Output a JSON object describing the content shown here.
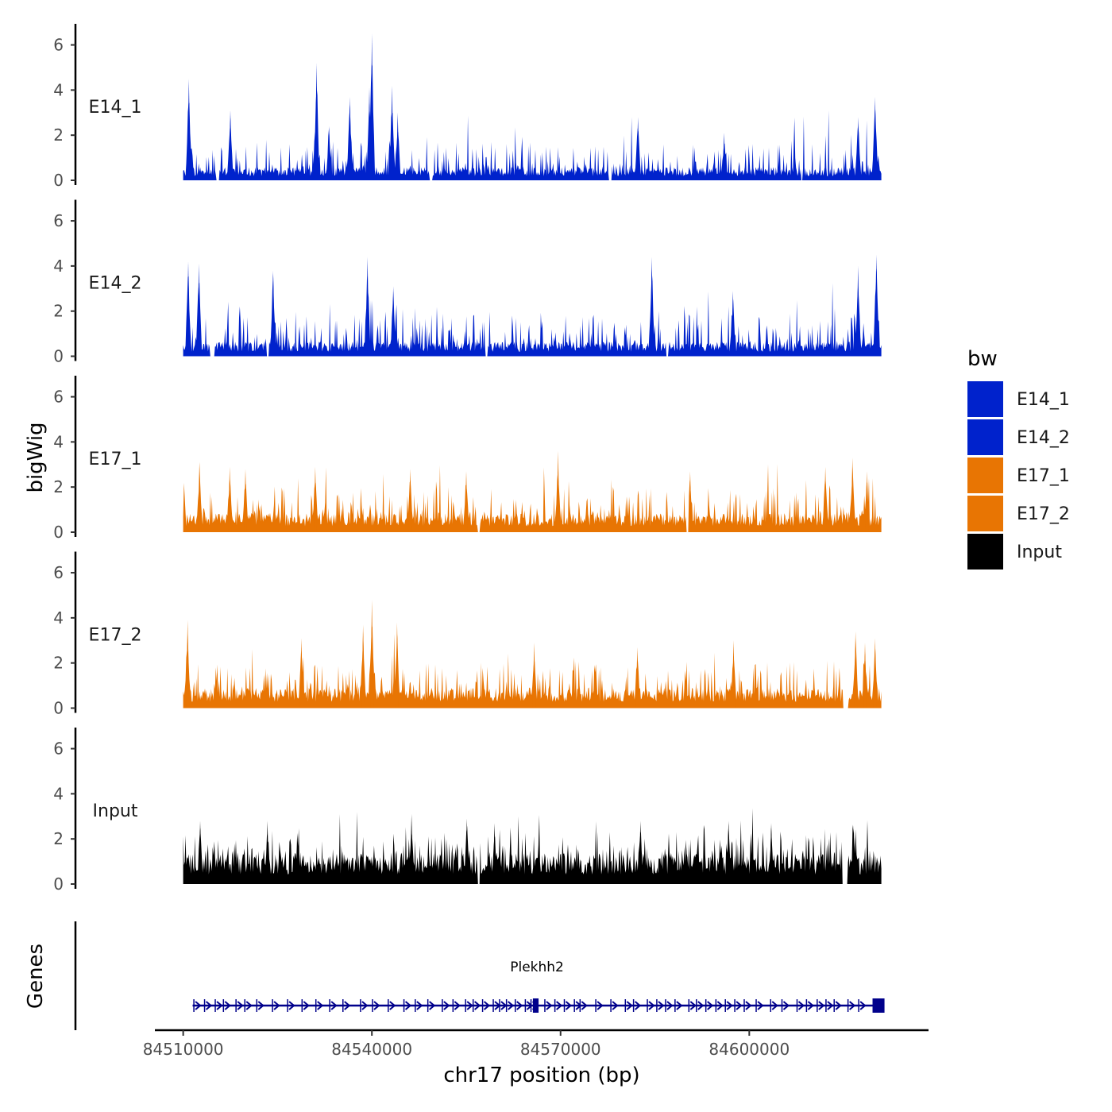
{
  "chart_data": {
    "type": "area",
    "x_axis": {
      "title": "chr17 position (bp)",
      "range": [
        84505500,
        84628500
      ],
      "data_range": [
        84510000,
        84621000
      ],
      "ticks": [
        84510000,
        84540000,
        84570000,
        84600000
      ],
      "tick_labels": [
        "84510000",
        "84540000",
        "84570000",
        "84600000"
      ]
    },
    "y_axis": {
      "title": "bigWig",
      "range": [
        0,
        6.9
      ],
      "ticks": [
        0,
        2,
        4,
        6
      ],
      "tick_labels": [
        "0",
        "2",
        "4",
        "6"
      ]
    },
    "legend": {
      "title": "bw",
      "position": "right",
      "entries": [
        {
          "label": "E14_1",
          "color": "#0022CC"
        },
        {
          "label": "E14_2",
          "color": "#0022CC"
        },
        {
          "label": "E17_1",
          "color": "#E87503"
        },
        {
          "label": "E17_2",
          "color": "#E87503"
        },
        {
          "label": "Input",
          "color": "#000000"
        }
      ]
    },
    "tracks": [
      {
        "name": "E14_1",
        "color": "#0022CC",
        "baseline": 0.45,
        "noise": 0.9,
        "gaps": [
          [
            84515200,
            84515700
          ],
          [
            84549200,
            84549600
          ],
          [
            84577700,
            84578100
          ],
          [
            84608200,
            84608500
          ]
        ],
        "peaks": [
          [
            84510900,
            4.5
          ],
          [
            84517500,
            3.1
          ],
          [
            84531200,
            5.2
          ],
          [
            84533200,
            2.4
          ],
          [
            84536500,
            3.7
          ],
          [
            84539600,
            4.1
          ],
          [
            84540000,
            6.5
          ],
          [
            84543200,
            4.2
          ],
          [
            84544100,
            3.0
          ],
          [
            84582300,
            2.8
          ],
          [
            84596000,
            2.1
          ],
          [
            84620000,
            3.7
          ],
          [
            84617300,
            2.8
          ]
        ]
      },
      {
        "name": "E14_2",
        "color": "#0022CC",
        "baseline": 0.5,
        "noise": 1.0,
        "gaps": [
          [
            84514200,
            84515000
          ],
          [
            84523200,
            84523600
          ],
          [
            84558000,
            84558400
          ],
          [
            84586800,
            84587200
          ]
        ],
        "peaks": [
          [
            84510800,
            4.2
          ],
          [
            84512500,
            4.1
          ],
          [
            84524300,
            3.8
          ],
          [
            84539300,
            4.4
          ],
          [
            84543400,
            3.1
          ],
          [
            84584500,
            4.4
          ],
          [
            84597400,
            2.9
          ],
          [
            84620200,
            4.5
          ],
          [
            84617300,
            4.0
          ]
        ]
      },
      {
        "name": "E17_1",
        "color": "#E87503",
        "baseline": 0.65,
        "noise": 0.95,
        "gaps": [
          [
            84556800,
            84557200
          ],
          [
            84590000,
            84590300
          ]
        ],
        "peaks": [
          [
            84512600,
            2.9
          ],
          [
            84517400,
            2.9
          ],
          [
            84519900,
            2.8
          ],
          [
            84531000,
            2.9
          ],
          [
            84546100,
            2.8
          ],
          [
            84555000,
            2.7
          ],
          [
            84569600,
            3.6
          ],
          [
            84590600,
            2.7
          ],
          [
            84612100,
            2.9
          ],
          [
            84616400,
            3.3
          ],
          [
            84618700,
            2.7
          ]
        ]
      },
      {
        "name": "E17_2",
        "color": "#E87503",
        "baseline": 0.7,
        "noise": 1.0,
        "gaps": [
          [
            84614900,
            84615800
          ]
        ],
        "peaks": [
          [
            84510700,
            3.9
          ],
          [
            84528800,
            3.1
          ],
          [
            84538600,
            3.7
          ],
          [
            84540000,
            4.8
          ],
          [
            84544000,
            3.8
          ],
          [
            84565800,
            2.9
          ],
          [
            84582200,
            2.7
          ],
          [
            84597500,
            3.0
          ],
          [
            84616900,
            3.4
          ],
          [
            84618400,
            2.9
          ],
          [
            84620000,
            3.1
          ]
        ]
      },
      {
        "name": "Input",
        "color": "#000000",
        "baseline": 1.05,
        "noise": 0.9,
        "gaps": [
          [
            84556800,
            84557200
          ],
          [
            84614800,
            84615600
          ]
        ],
        "peaks": [
          [
            84512700,
            2.8
          ],
          [
            84523400,
            2.8
          ],
          [
            84546300,
            3.1
          ],
          [
            84555100,
            2.9
          ],
          [
            84559500,
            2.7
          ],
          [
            84582700,
            2.8
          ],
          [
            84596700,
            2.8
          ],
          [
            84603500,
            2.7
          ],
          [
            84616600,
            2.6
          ]
        ]
      }
    ],
    "genes": {
      "title": "Genes",
      "gene_name": "Plekhh2",
      "strand": "+",
      "color": "#00008B",
      "start": 84511500,
      "end": 84621000,
      "exons": [
        84511700,
        84513400,
        84515100,
        84516400,
        84518400,
        84519800,
        84521700,
        84524200,
        84526600,
        84528900,
        84531100,
        84533300,
        84535400,
        84538200,
        84540100,
        84542600,
        84545100,
        84546900,
        84548900,
        84551200,
        84552900,
        84554900,
        84556100,
        84557600,
        84559300,
        84560300,
        84561400,
        84562800,
        84564400,
        84565300,
        84567500,
        84569100,
        84570600,
        84572200,
        84573100,
        84575600,
        84578000,
        84580300,
        84581600,
        84583800,
        84585300,
        84586700,
        84588200,
        84590400,
        84591600,
        84593100,
        84594700,
        84596200,
        84597700,
        84599200,
        84601100,
        84603400,
        84605200,
        84607600,
        84609100,
        84610800,
        84612200,
        84613500,
        84615700,
        84617400
      ],
      "thick_exons": [
        [
          84565600,
          84566500
        ],
        [
          84619600,
          84621500
        ]
      ]
    }
  }
}
